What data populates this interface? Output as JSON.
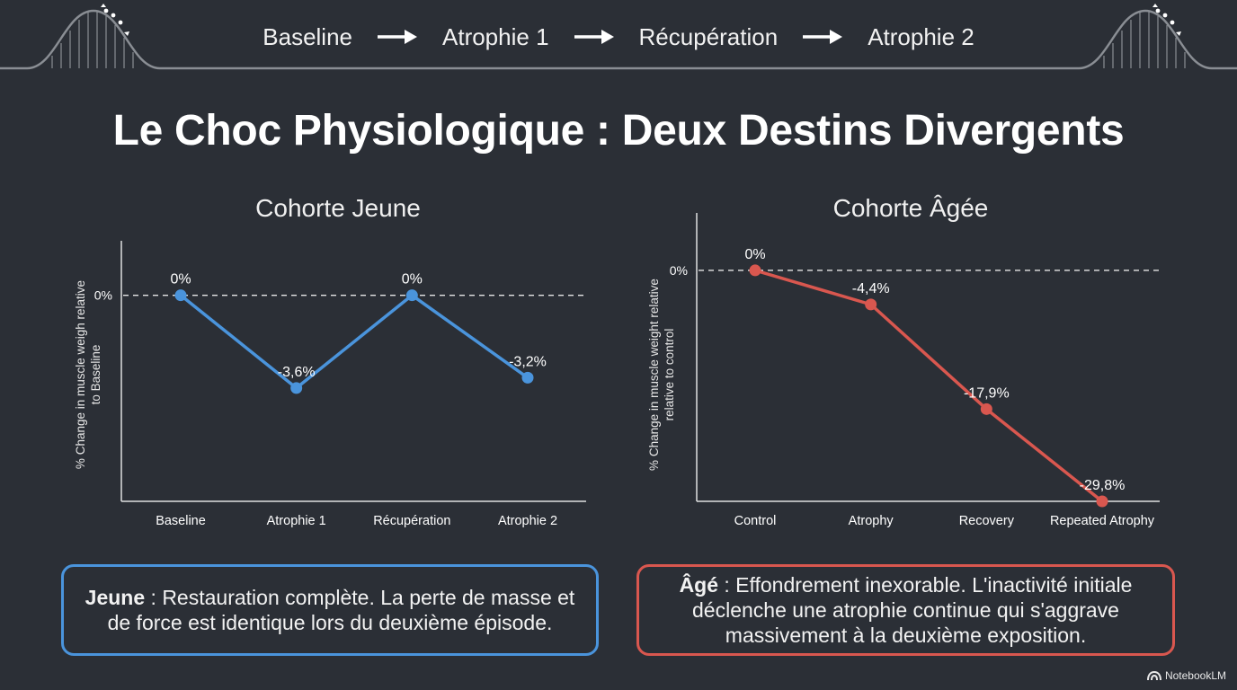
{
  "timeline": {
    "steps": [
      "Baseline",
      "Atrophie 1",
      "Récupération",
      "Atrophie 2"
    ]
  },
  "title": "Le Choc Physiologique : Deux Destins Divergents",
  "chart_data": [
    {
      "type": "line",
      "title": "Cohorte Jeune",
      "ylabel": "% Change in muscle weigh relative to Baseline",
      "ylabel_lines": [
        "% Change in muscle weigh relative",
        "to Baseline"
      ],
      "xlabel": "",
      "categories": [
        "Baseline",
        "Atrophie 1",
        "Récupération",
        "Atrophie 2"
      ],
      "values": [
        0,
        -3.6,
        0,
        -3.2
      ],
      "labels": [
        "0%",
        "-3,6%",
        "0%",
        "-3,2%"
      ],
      "reference_tick": "0%",
      "ylim": [
        -8,
        1
      ],
      "color": "#4a94dc"
    },
    {
      "type": "line",
      "title": "Cohorte Âgée",
      "ylabel": "% Change in muscle weight relative relative to control",
      "ylabel_lines": [
        "% Change in muscle weight relative",
        "relative to control"
      ],
      "xlabel": "",
      "categories": [
        "Control",
        "Atrophy",
        "Recovery",
        "Repeated Atrophy"
      ],
      "values": [
        0,
        -4.4,
        -17.9,
        -29.8
      ],
      "labels": [
        "0%",
        "-4,4%",
        "-17,9%",
        "-29,8%"
      ],
      "reference_tick": "0%",
      "ylim": [
        -29.8,
        3.7
      ],
      "color": "#d9574f"
    }
  ],
  "captions": {
    "young": {
      "bold": "Jeune",
      "text": " : Restauration complète. La perte de masse et de force est identique lors du deuxième épisode."
    },
    "old": {
      "bold": "Âgé",
      "text": " : Effondrement inexorable. L'inactivité initiale déclenche une atrophie continue qui s'aggrave massivement à la deuxième exposition."
    }
  },
  "brand": "NotebookLM",
  "colors": {
    "background": "#2b2f36",
    "young": "#4a94dc",
    "old": "#d9574f",
    "axis": "#e0e0e0",
    "decor": "#8a8e94"
  }
}
